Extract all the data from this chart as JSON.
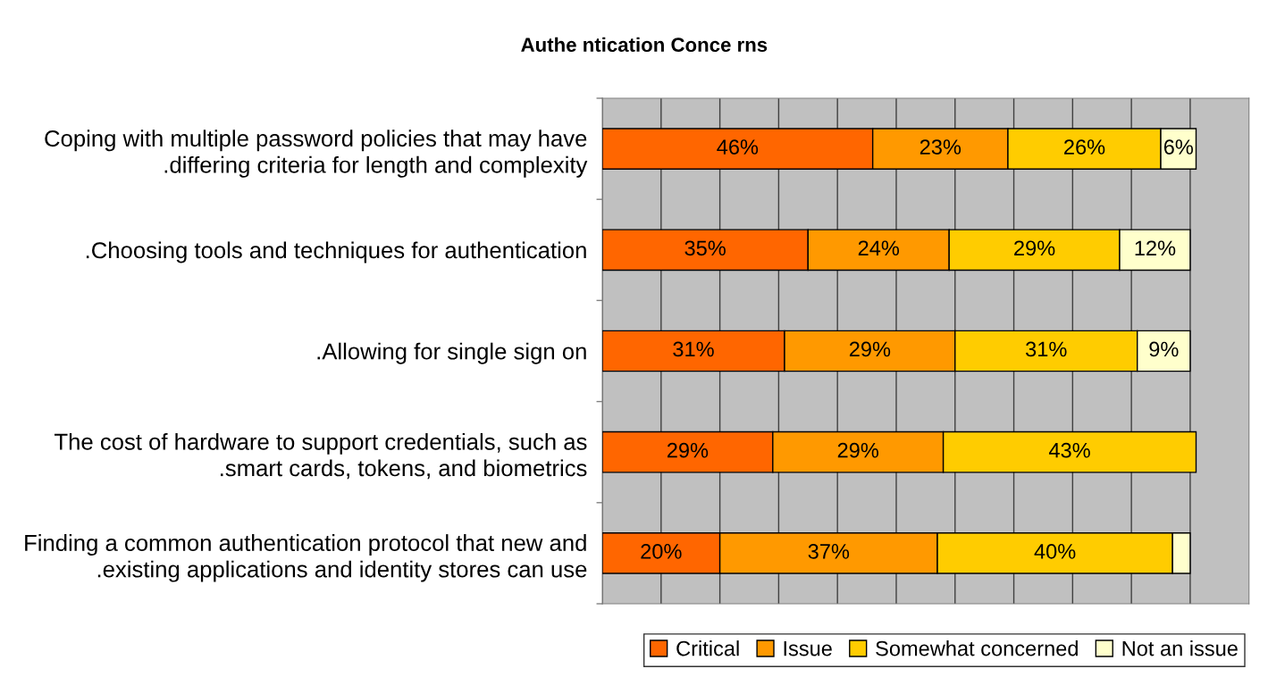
{
  "chart_data": {
    "type": "bar",
    "orientation": "horizontal",
    "stacked": true,
    "title": "Authe ntication Conce rns",
    "categories": [
      "Coping with multiple password policies that may have\n.differing criteria for length and complexity",
      ".Choosing tools and techniques for authentication",
      ".Allowing for single sign on",
      "The cost of hardware to support credentials, such as\n.smart cards, tokens, and biometrics",
      "Finding a common authentication protocol that new and\n.existing applications and identity stores can use"
    ],
    "series": [
      {
        "name": "Critical",
        "color": "#ff6600",
        "values": [
          46,
          35,
          31,
          29,
          20
        ],
        "value_labels": [
          "46%",
          "35%",
          "31%",
          "29%",
          "20%"
        ]
      },
      {
        "name": "Issue",
        "color": "#ff9900",
        "values": [
          23,
          24,
          29,
          29,
          37
        ],
        "value_labels": [
          "23%",
          "24%",
          "29%",
          "29%",
          "37%"
        ]
      },
      {
        "name": "Somewhat concerned",
        "color": "#ffcc00",
        "values": [
          26,
          29,
          31,
          43,
          40
        ],
        "value_labels": [
          "26%",
          "29%",
          "31%",
          "43%",
          "40%"
        ]
      },
      {
        "name": "Not an issue",
        "color": "#ffffcc",
        "values": [
          6,
          12,
          9,
          null,
          3
        ],
        "value_labels": [
          "6%",
          "12%",
          "9%",
          null,
          null
        ]
      }
    ],
    "xlim": [
      0,
      110
    ],
    "xticks": [
      {
        "value": 0,
        "label": null
      },
      {
        "value": 10,
        "label": null
      },
      {
        "value": 20,
        "label": null
      },
      {
        "value": 30,
        "label": null
      },
      {
        "value": 40,
        "label": null
      },
      {
        "value": 50,
        "label": null
      },
      {
        "value": 60,
        "label": null
      },
      {
        "value": 70,
        "label": null
      },
      {
        "value": 80,
        "label": null
      },
      {
        "value": 90,
        "label": null
      },
      {
        "value": 100,
        "label": null
      }
    ],
    "tick_labels": "y",
    "grid": "x",
    "legend": "bottom"
  }
}
